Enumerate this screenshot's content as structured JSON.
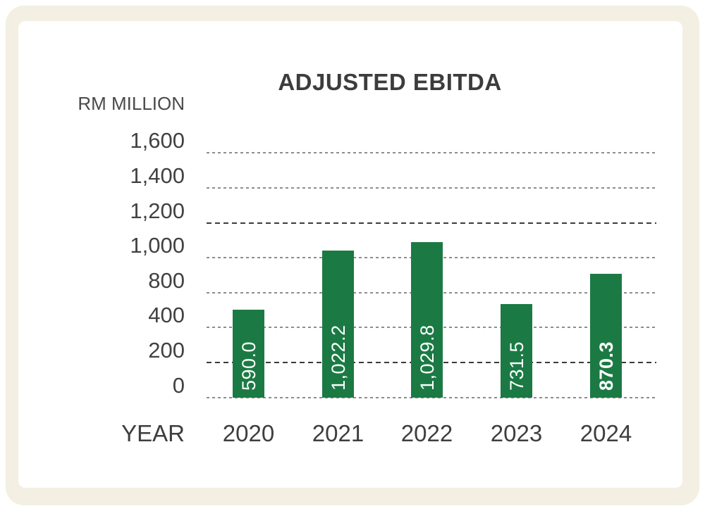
{
  "card": {
    "background": "#FFFFFF",
    "frame_color": "#F3EFE3"
  },
  "chart_data": {
    "type": "bar",
    "title": "ADJUSTED EBITDA",
    "ylabel": "RM MILLION",
    "xlabel": "YEAR",
    "categories": [
      "2020",
      "2021",
      "2022",
      "2023",
      "2024"
    ],
    "values": [
      590.0,
      1022.2,
      1029.8,
      731.5,
      870.3
    ],
    "value_labels": [
      "590.0",
      "1,022.2",
      "1,029.8",
      "731.5",
      "870.3"
    ],
    "highlighted_index": 4,
    "y_tick_labels": [
      "1,600",
      "1,400",
      "1,200",
      "1,000",
      "800",
      "400",
      "200",
      "0"
    ],
    "ylim": [
      0,
      1600
    ],
    "grid": "horizontal dashed lines, darker at 1,200 and 200",
    "legend": "none",
    "bar_color": "#1B7A44",
    "value_label_color": "#FFFFFF",
    "title_color": "#3C3C3C",
    "axis_text_color": "#3E3E3E"
  }
}
